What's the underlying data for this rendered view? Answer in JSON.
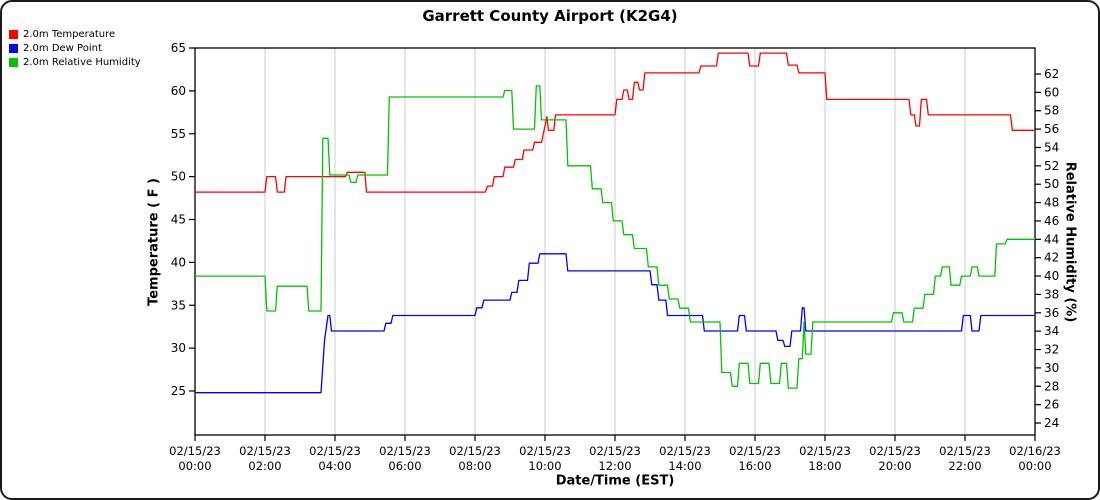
{
  "chart_data": {
    "type": "line",
    "title": "Garrett County Airport (K2G4)",
    "x_label": "Date/Time (EST)",
    "y_left_label": "Temperature ( F )",
    "y_right_label": "Relative Humidity (%)",
    "ylim_left": [
      25,
      65
    ],
    "ylim_right": [
      24,
      62
    ],
    "grid": "vertical-only",
    "legend_position": "top-left",
    "x_ticks": [
      [
        "02/15/23",
        "00:00"
      ],
      [
        "02/15/23",
        "02:00"
      ],
      [
        "02/15/23",
        "04:00"
      ],
      [
        "02/15/23",
        "06:00"
      ],
      [
        "02/15/23",
        "08:00"
      ],
      [
        "02/15/23",
        "10:00"
      ],
      [
        "02/15/23",
        "12:00"
      ],
      [
        "02/15/23",
        "14:00"
      ],
      [
        "02/15/23",
        "16:00"
      ],
      [
        "02/15/23",
        "18:00"
      ],
      [
        "02/15/23",
        "20:00"
      ],
      [
        "02/15/23",
        "22:00"
      ],
      [
        "02/16/23",
        "00:00"
      ]
    ],
    "left_axis": {
      "ticks": [
        65,
        60,
        55,
        50,
        45,
        40,
        35,
        30,
        25
      ]
    },
    "right_axis": {
      "ticks": [
        62,
        60,
        58,
        56,
        54,
        52,
        50,
        48,
        46,
        44,
        42,
        40,
        38,
        36,
        34,
        32,
        30,
        28,
        26,
        24
      ]
    },
    "series": [
      {
        "name": "2.0m Temperature",
        "color": "#ff0000",
        "axis": "left",
        "points": [
          [
            0,
            48.2
          ],
          [
            2.0,
            48.2
          ],
          [
            2.05,
            50
          ],
          [
            2.3,
            50
          ],
          [
            2.35,
            48.2
          ],
          [
            2.55,
            48.2
          ],
          [
            2.6,
            50
          ],
          [
            4.3,
            50
          ],
          [
            4.35,
            50.5
          ],
          [
            4.85,
            50.5
          ],
          [
            4.9,
            48.2
          ],
          [
            8.3,
            48.2
          ],
          [
            8.35,
            48.9
          ],
          [
            8.5,
            48.9
          ],
          [
            8.55,
            50
          ],
          [
            8.8,
            50
          ],
          [
            8.85,
            51.1
          ],
          [
            9.1,
            51.1
          ],
          [
            9.15,
            52
          ],
          [
            9.35,
            52
          ],
          [
            9.4,
            53.1
          ],
          [
            9.65,
            53.1
          ],
          [
            9.7,
            54
          ],
          [
            9.9,
            54
          ],
          [
            9.95,
            55
          ],
          [
            10.0,
            55.9
          ],
          [
            10.05,
            57
          ],
          [
            10.1,
            55.4
          ],
          [
            10.25,
            55.4
          ],
          [
            10.3,
            57.2
          ],
          [
            12.0,
            57.2
          ],
          [
            12.05,
            59
          ],
          [
            12.2,
            59
          ],
          [
            12.25,
            60.1
          ],
          [
            12.35,
            60.1
          ],
          [
            12.4,
            59
          ],
          [
            12.5,
            59
          ],
          [
            12.55,
            61
          ],
          [
            12.65,
            61
          ],
          [
            12.7,
            60.1
          ],
          [
            12.8,
            60.1
          ],
          [
            12.85,
            62.1
          ],
          [
            14.4,
            62.1
          ],
          [
            14.45,
            62.9
          ],
          [
            14.9,
            62.9
          ],
          [
            14.95,
            64.4
          ],
          [
            15.8,
            64.4
          ],
          [
            15.85,
            62.9
          ],
          [
            16.1,
            62.9
          ],
          [
            16.15,
            64.4
          ],
          [
            16.9,
            64.4
          ],
          [
            16.95,
            63
          ],
          [
            17.2,
            63
          ],
          [
            17.25,
            62.1
          ],
          [
            18.0,
            62.1
          ],
          [
            18.05,
            59
          ],
          [
            20.4,
            59
          ],
          [
            20.45,
            57.2
          ],
          [
            20.55,
            57.2
          ],
          [
            20.6,
            55.9
          ],
          [
            20.7,
            55.9
          ],
          [
            20.75,
            59
          ],
          [
            20.9,
            59
          ],
          [
            20.95,
            57.2
          ],
          [
            23.3,
            57.2
          ],
          [
            23.35,
            55.4
          ],
          [
            24,
            55.4
          ]
        ]
      },
      {
        "name": "2.0m Dew Point",
        "color": "#0000ff",
        "axis": "left",
        "points": [
          [
            0,
            24.8
          ],
          [
            3.6,
            24.8
          ],
          [
            3.7,
            30.9
          ],
          [
            3.8,
            33.8
          ],
          [
            3.85,
            33.8
          ],
          [
            3.9,
            32
          ],
          [
            5.4,
            32
          ],
          [
            5.45,
            32.9
          ],
          [
            5.6,
            32.9
          ],
          [
            5.65,
            33.8
          ],
          [
            8.0,
            33.8
          ],
          [
            8.05,
            34.7
          ],
          [
            8.2,
            34.7
          ],
          [
            8.25,
            35.6
          ],
          [
            9.0,
            35.6
          ],
          [
            9.05,
            36.5
          ],
          [
            9.2,
            36.5
          ],
          [
            9.25,
            37.9
          ],
          [
            9.5,
            37.9
          ],
          [
            9.55,
            39.9
          ],
          [
            9.8,
            39.9
          ],
          [
            9.85,
            41
          ],
          [
            10.6,
            41
          ],
          [
            10.65,
            39
          ],
          [
            13.0,
            39
          ],
          [
            13.05,
            37.4
          ],
          [
            13.2,
            37.4
          ],
          [
            13.25,
            35.6
          ],
          [
            13.45,
            35.6
          ],
          [
            13.5,
            33.8
          ],
          [
            14.5,
            33.8
          ],
          [
            14.55,
            32
          ],
          [
            15.5,
            32
          ],
          [
            15.55,
            33.8
          ],
          [
            15.7,
            33.8
          ],
          [
            15.75,
            32
          ],
          [
            16.6,
            32
          ],
          [
            16.65,
            30.9
          ],
          [
            16.8,
            30.9
          ],
          [
            16.85,
            30.2
          ],
          [
            17.0,
            30.2
          ],
          [
            17.05,
            32
          ],
          [
            17.3,
            32
          ],
          [
            17.35,
            34.7
          ],
          [
            17.4,
            34.7
          ],
          [
            17.45,
            32
          ],
          [
            21.9,
            32
          ],
          [
            21.95,
            33.8
          ],
          [
            22.15,
            33.8
          ],
          [
            22.2,
            32
          ],
          [
            22.4,
            32
          ],
          [
            22.45,
            33.8
          ],
          [
            24,
            33.8
          ]
        ]
      },
      {
        "name": "2.0m Relative Humidity",
        "color": "#00c400",
        "axis": "right",
        "points": [
          [
            0,
            40
          ],
          [
            2.0,
            40
          ],
          [
            2.05,
            36.2
          ],
          [
            2.3,
            36.2
          ],
          [
            2.35,
            38.9
          ],
          [
            3.2,
            38.9
          ],
          [
            3.25,
            36.2
          ],
          [
            3.6,
            36.2
          ],
          [
            3.65,
            55
          ],
          [
            3.8,
            55
          ],
          [
            3.85,
            51
          ],
          [
            4.4,
            51
          ],
          [
            4.45,
            50.2
          ],
          [
            4.6,
            50.2
          ],
          [
            4.65,
            51
          ],
          [
            5.5,
            51
          ],
          [
            5.55,
            59.5
          ],
          [
            8.8,
            59.5
          ],
          [
            8.85,
            60.2
          ],
          [
            9.05,
            60.2
          ],
          [
            9.1,
            56
          ],
          [
            9.7,
            56
          ],
          [
            9.75,
            60.7
          ],
          [
            9.85,
            60.7
          ],
          [
            9.9,
            57
          ],
          [
            10.6,
            57
          ],
          [
            10.65,
            52
          ],
          [
            11.3,
            52
          ],
          [
            11.35,
            49.5
          ],
          [
            11.6,
            49.5
          ],
          [
            11.65,
            48
          ],
          [
            11.9,
            48
          ],
          [
            11.95,
            46
          ],
          [
            12.2,
            46
          ],
          [
            12.25,
            44.5
          ],
          [
            12.5,
            44.5
          ],
          [
            12.55,
            43
          ],
          [
            12.9,
            43
          ],
          [
            12.95,
            41
          ],
          [
            13.2,
            41
          ],
          [
            13.25,
            39
          ],
          [
            13.5,
            39
          ],
          [
            13.55,
            37.5
          ],
          [
            13.8,
            37.5
          ],
          [
            13.85,
            36.5
          ],
          [
            14.1,
            36.5
          ],
          [
            14.15,
            35
          ],
          [
            15.0,
            35
          ],
          [
            15.05,
            29.5
          ],
          [
            15.3,
            29.5
          ],
          [
            15.35,
            28
          ],
          [
            15.5,
            28
          ],
          [
            15.55,
            30.5
          ],
          [
            15.8,
            30.5
          ],
          [
            15.85,
            28.3
          ],
          [
            16.1,
            28.3
          ],
          [
            16.15,
            30.5
          ],
          [
            16.4,
            30.5
          ],
          [
            16.45,
            28.3
          ],
          [
            16.7,
            28.3
          ],
          [
            16.75,
            30.5
          ],
          [
            16.9,
            30.5
          ],
          [
            16.95,
            27.8
          ],
          [
            17.2,
            27.8
          ],
          [
            17.25,
            31
          ],
          [
            17.35,
            31
          ],
          [
            17.4,
            35
          ],
          [
            17.45,
            31.5
          ],
          [
            17.6,
            31.5
          ],
          [
            17.65,
            35
          ],
          [
            19.9,
            35
          ],
          [
            19.95,
            36
          ],
          [
            20.2,
            36
          ],
          [
            20.25,
            35
          ],
          [
            20.5,
            35
          ],
          [
            20.55,
            36.5
          ],
          [
            20.8,
            36.5
          ],
          [
            20.85,
            38
          ],
          [
            21.1,
            38
          ],
          [
            21.15,
            40
          ],
          [
            21.3,
            40
          ],
          [
            21.35,
            41
          ],
          [
            21.55,
            41
          ],
          [
            21.6,
            39
          ],
          [
            21.85,
            39
          ],
          [
            21.9,
            40
          ],
          [
            22.15,
            40
          ],
          [
            22.2,
            41
          ],
          [
            22.35,
            41
          ],
          [
            22.4,
            40
          ],
          [
            22.85,
            40
          ],
          [
            22.9,
            43.5
          ],
          [
            23.15,
            43.5
          ],
          [
            23.2,
            44
          ],
          [
            24,
            44
          ]
        ]
      }
    ]
  }
}
